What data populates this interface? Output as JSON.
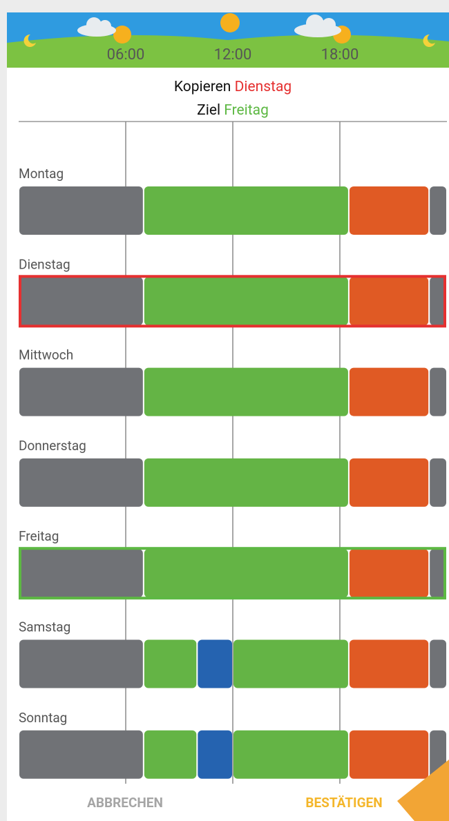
{
  "header": {
    "xlim": [
      0,
      24
    ],
    "times": [
      {
        "value": 6,
        "label": "06:00"
      },
      {
        "value": 12,
        "label": "12:00"
      },
      {
        "value": 18,
        "label": "18:00"
      }
    ]
  },
  "dialog": {
    "copy_label": "Kopieren",
    "copy_day": "Dienstag",
    "target_label": "Ziel",
    "target_day": "Freitag",
    "days": [
      {
        "name": "Montag",
        "segments": [
          {
            "start": 0,
            "end": 7,
            "color": "#707276"
          },
          {
            "start": 7,
            "end": 18.5,
            "color": "#64b445"
          },
          {
            "start": 18.5,
            "end": 23,
            "color": "#e05a24"
          },
          {
            "start": 23,
            "end": 24,
            "color": "#707276"
          }
        ]
      },
      {
        "name": "Dienstag",
        "highlight": "#e53030",
        "segments": [
          {
            "start": 0,
            "end": 7,
            "color": "#707276"
          },
          {
            "start": 7,
            "end": 18.5,
            "color": "#64b445"
          },
          {
            "start": 18.5,
            "end": 23,
            "color": "#e05a24"
          },
          {
            "start": 23,
            "end": 24,
            "color": "#707276"
          }
        ]
      },
      {
        "name": "Mittwoch",
        "segments": [
          {
            "start": 0,
            "end": 7,
            "color": "#707276"
          },
          {
            "start": 7,
            "end": 18.5,
            "color": "#64b445"
          },
          {
            "start": 18.5,
            "end": 23,
            "color": "#e05a24"
          },
          {
            "start": 23,
            "end": 24,
            "color": "#707276"
          }
        ]
      },
      {
        "name": "Donnerstag",
        "segments": [
          {
            "start": 0,
            "end": 7,
            "color": "#707276"
          },
          {
            "start": 7,
            "end": 18.5,
            "color": "#64b445"
          },
          {
            "start": 18.5,
            "end": 23,
            "color": "#e05a24"
          },
          {
            "start": 23,
            "end": 24,
            "color": "#707276"
          }
        ]
      },
      {
        "name": "Freitag",
        "highlight": "#5db843",
        "segments": [
          {
            "start": 0,
            "end": 7,
            "color": "#707276"
          },
          {
            "start": 7,
            "end": 18.5,
            "color": "#64b445"
          },
          {
            "start": 18.5,
            "end": 23,
            "color": "#e05a24"
          },
          {
            "start": 23,
            "end": 24,
            "color": "#707276"
          }
        ]
      },
      {
        "name": "Samstag",
        "segments": [
          {
            "start": 0,
            "end": 7,
            "color": "#707276"
          },
          {
            "start": 7,
            "end": 10,
            "color": "#64b445"
          },
          {
            "start": 10,
            "end": 12,
            "color": "#2563b0"
          },
          {
            "start": 12,
            "end": 18.5,
            "color": "#64b445"
          },
          {
            "start": 18.5,
            "end": 23,
            "color": "#e05a24"
          },
          {
            "start": 23,
            "end": 24,
            "color": "#707276"
          }
        ]
      },
      {
        "name": "Sonntag",
        "segments": [
          {
            "start": 0,
            "end": 7,
            "color": "#707276"
          },
          {
            "start": 7,
            "end": 10,
            "color": "#64b445"
          },
          {
            "start": 10,
            "end": 12,
            "color": "#2563b0"
          },
          {
            "start": 12,
            "end": 18.5,
            "color": "#64b445"
          },
          {
            "start": 18.5,
            "end": 23,
            "color": "#e05a24"
          },
          {
            "start": 23,
            "end": 24,
            "color": "#707276"
          }
        ]
      }
    ],
    "buttons": {
      "cancel": "ABBRECHEN",
      "confirm": "BESTÄTIGEN"
    }
  }
}
